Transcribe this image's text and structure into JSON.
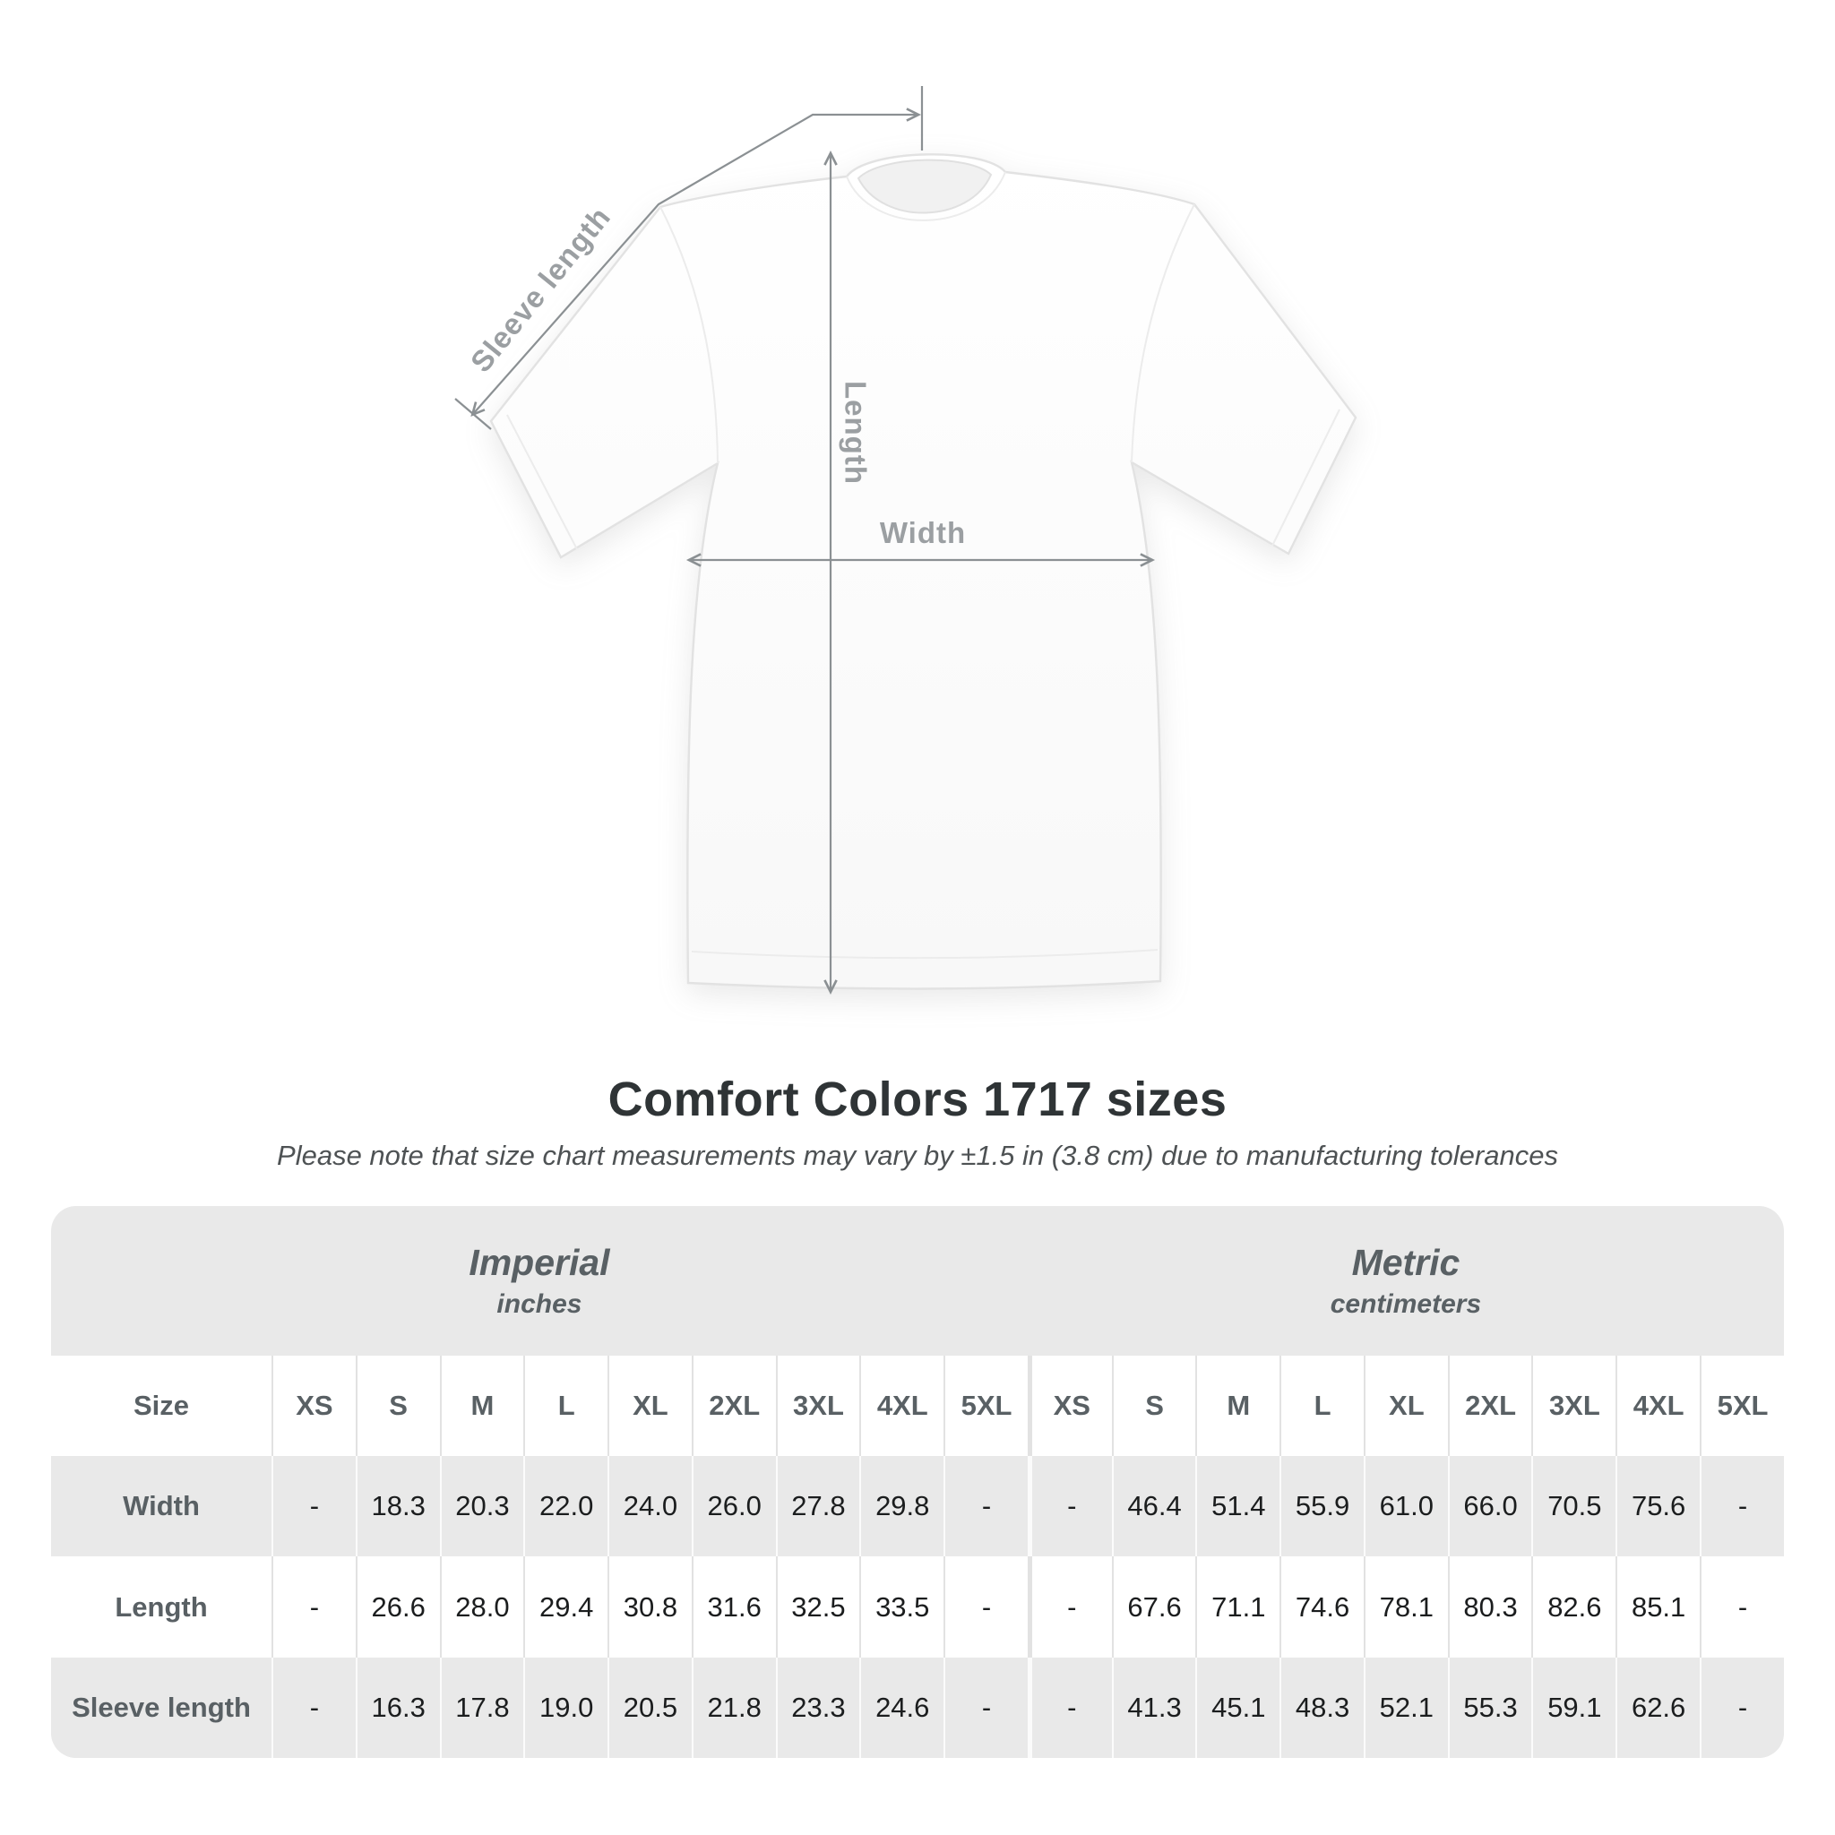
{
  "diagram": {
    "labels": {
      "sleeve_length": "Sleeve length",
      "length": "Length",
      "width": "Width"
    },
    "line_color": "#8b9093",
    "label_color": "#9b9fa2"
  },
  "heading": {
    "title": "Comfort Colors 1717 sizes",
    "note": "Please note that size chart measurements may vary by ±1.5 in (3.8 cm) due to manufacturing tolerances"
  },
  "size_table": {
    "corner_header": "Size",
    "unit_groups": [
      {
        "name": "Imperial",
        "unit": "inches"
      },
      {
        "name": "Metric",
        "unit": "centimeters"
      }
    ],
    "sizes": [
      "XS",
      "S",
      "M",
      "L",
      "XL",
      "2XL",
      "3XL",
      "4XL",
      "5XL"
    ],
    "rows": [
      {
        "label": "Width",
        "imperial": [
          "-",
          "18.3",
          "20.3",
          "22.0",
          "24.0",
          "26.0",
          "27.8",
          "29.8",
          "-"
        ],
        "metric": [
          "-",
          "46.4",
          "51.4",
          "55.9",
          "61.0",
          "66.0",
          "70.5",
          "75.6",
          "-"
        ]
      },
      {
        "label": "Length",
        "imperial": [
          "-",
          "26.6",
          "28.0",
          "29.4",
          "30.8",
          "31.6",
          "32.5",
          "33.5",
          "-"
        ],
        "metric": [
          "-",
          "67.6",
          "71.1",
          "74.6",
          "78.1",
          "80.3",
          "82.6",
          "85.1",
          "-"
        ]
      },
      {
        "label": "Sleeve length",
        "imperial": [
          "-",
          "16.3",
          "17.8",
          "19.0",
          "20.5",
          "21.8",
          "23.3",
          "24.6",
          "-"
        ],
        "metric": [
          "-",
          "41.3",
          "45.1",
          "48.3",
          "52.1",
          "55.3",
          "59.1",
          "62.6",
          "-"
        ]
      }
    ]
  }
}
